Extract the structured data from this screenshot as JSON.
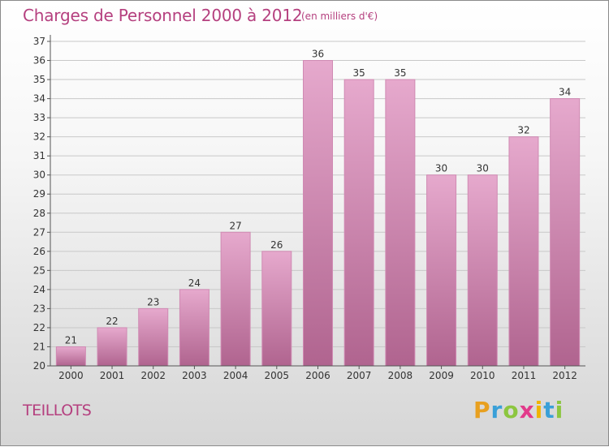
{
  "header": {
    "title": "Charges de Personnel 2000 à 2012",
    "subtitle": "(en milliers d'€)"
  },
  "footer": {
    "place": "TEILLOTS",
    "logo_letters": [
      "P",
      "r",
      "o",
      "x",
      "i",
      "t",
      "i"
    ],
    "logo_colors": [
      "#e8a020",
      "#3aa0d8",
      "#8cc63f",
      "#e23a8b",
      "#f0b400",
      "#3aa0d8",
      "#8cc63f"
    ]
  },
  "colors": {
    "bar_top": "#e6a9cd",
    "bar_bottom": "#b0648f",
    "bar_edge": "#d08ab3",
    "axis": "#555555",
    "grid": "#c8c8c8",
    "text": "#333333"
  },
  "chart_data": {
    "type": "bar",
    "categories": [
      "2000",
      "2001",
      "2002",
      "2003",
      "2004",
      "2005",
      "2006",
      "2007",
      "2008",
      "2009",
      "2010",
      "2011",
      "2012"
    ],
    "values": [
      21,
      22,
      23,
      24,
      27,
      26,
      36,
      35,
      35,
      30,
      30,
      32,
      34
    ],
    "ylim": [
      20,
      37
    ],
    "yticks": [
      20,
      21,
      22,
      23,
      24,
      25,
      26,
      27,
      28,
      29,
      30,
      31,
      32,
      33,
      34,
      35,
      36,
      37
    ],
    "grid": true,
    "data_labels": true
  }
}
